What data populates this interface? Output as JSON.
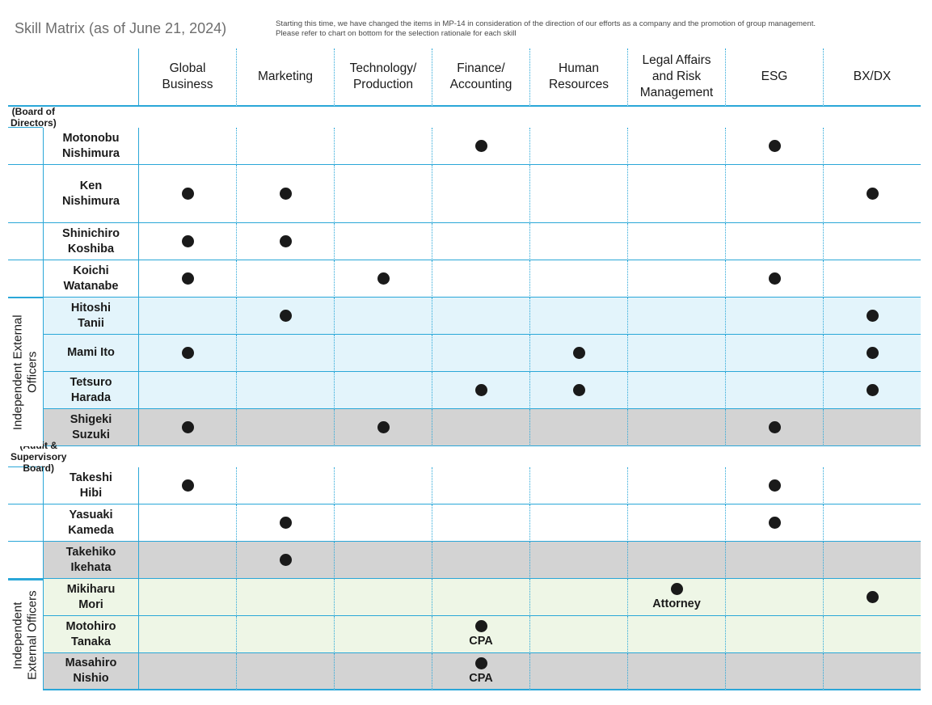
{
  "title": "Skill Matrix (as of June 21, 2024)",
  "note_lines": [
    "Starting this time, we have changed the items in MP-14 in consideration of the direction of our efforts as a company and the promotion of group management.",
    "Please refer to chart on bottom for the selection rationale for each skill"
  ],
  "skills": [
    [
      "Global",
      "Business"
    ],
    [
      "Marketing"
    ],
    [
      "Technology/",
      "Production"
    ],
    [
      "Finance/",
      "Accounting"
    ],
    [
      "Human",
      "Resources"
    ],
    [
      "Legal Affairs",
      "and Risk",
      "Management"
    ],
    [
      "ESG"
    ],
    [
      "BX/DX"
    ]
  ],
  "dot_color": "#1a1a1a",
  "line_color": "#2aa7d8",
  "sections": [
    {
      "label": "(Board of Directors)",
      "group_label": [
        "Independent External",
        "Officers"
      ],
      "members": [
        {
          "name": [
            "Motonobu",
            "Nishimura"
          ],
          "bg": "white",
          "skills": [
            0,
            0,
            0,
            1,
            0,
            0,
            1,
            0
          ],
          "independent": false
        },
        {
          "name": [
            "Ken",
            "Nishimura"
          ],
          "bg": "white",
          "skills": [
            1,
            1,
            0,
            0,
            0,
            0,
            0,
            1
          ],
          "independent": false
        },
        {
          "name": [
            "Shinichiro",
            "Koshiba"
          ],
          "bg": "white",
          "skills": [
            1,
            1,
            0,
            0,
            0,
            0,
            0,
            0
          ],
          "independent": false
        },
        {
          "name": [
            "Koichi",
            "Watanabe"
          ],
          "bg": "white",
          "skills": [
            1,
            0,
            1,
            0,
            0,
            0,
            1,
            0
          ],
          "independent": false
        },
        {
          "name": [
            "Hitoshi",
            "Tanii"
          ],
          "bg": "blue",
          "skills": [
            0,
            1,
            0,
            0,
            0,
            0,
            0,
            1
          ],
          "independent": true
        },
        {
          "name": [
            "Mami Ito"
          ],
          "bg": "blue",
          "skills": [
            1,
            0,
            0,
            0,
            1,
            0,
            0,
            1
          ],
          "independent": true
        },
        {
          "name": [
            "Tetsuro",
            "Harada"
          ],
          "bg": "blue",
          "skills": [
            0,
            0,
            0,
            1,
            1,
            0,
            0,
            1
          ],
          "independent": true
        },
        {
          "name": [
            "Shigeki",
            "Suzuki"
          ],
          "bg": "gray",
          "skills": [
            1,
            0,
            1,
            0,
            0,
            0,
            1,
            0
          ],
          "independent": true
        }
      ]
    },
    {
      "label": "(Audit & Supervisory Board)",
      "group_label": [
        "Independent",
        "External Officers"
      ],
      "members": [
        {
          "name": [
            "Takeshi",
            "Hibi"
          ],
          "bg": "white",
          "skills": [
            1,
            0,
            0,
            0,
            0,
            0,
            1,
            0
          ],
          "independent": false
        },
        {
          "name": [
            "Yasuaki",
            "Kameda"
          ],
          "bg": "white",
          "skills": [
            0,
            1,
            0,
            0,
            0,
            0,
            1,
            0
          ],
          "independent": false
        },
        {
          "name": [
            "Takehiko",
            "Ikehata"
          ],
          "bg": "gray",
          "skills": [
            0,
            1,
            0,
            0,
            0,
            0,
            0,
            0
          ],
          "independent": false
        },
        {
          "name": [
            "Mikiharu",
            "Mori"
          ],
          "bg": "green",
          "skills": [
            0,
            0,
            0,
            0,
            0,
            1,
            0,
            1
          ],
          "notes": {
            "5": "Attorney"
          },
          "independent": true
        },
        {
          "name": [
            "Motohiro",
            "Tanaka"
          ],
          "bg": "green",
          "skills": [
            0,
            0,
            0,
            1,
            0,
            0,
            0,
            0
          ],
          "notes": {
            "3": "CPA"
          },
          "independent": true
        },
        {
          "name": [
            "Masahiro",
            "Nishio"
          ],
          "bg": "gray",
          "skills": [
            0,
            0,
            0,
            1,
            0,
            0,
            0,
            0
          ],
          "notes": {
            "3": "CPA"
          },
          "independent": true
        }
      ]
    }
  ]
}
